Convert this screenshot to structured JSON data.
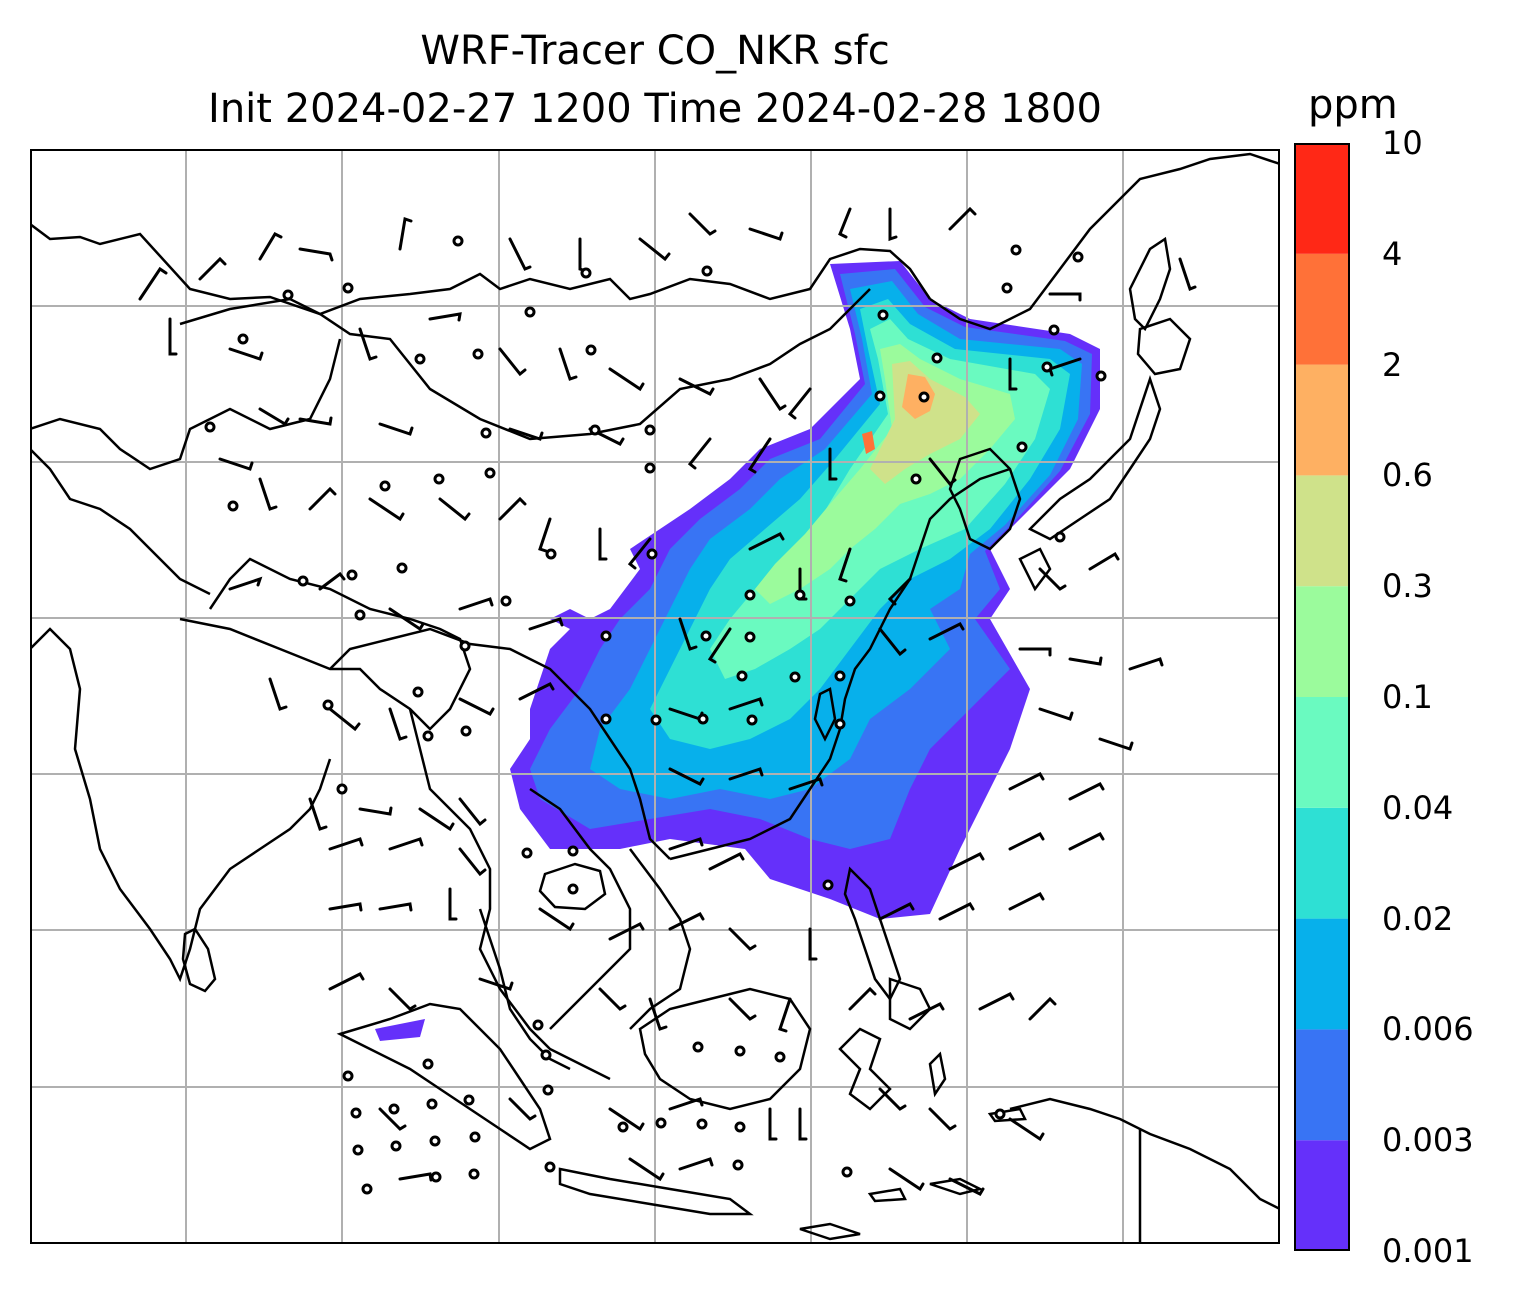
{
  "title_line1": "WRF-Tracer CO_NKR sfc",
  "title_line2": "Init 2024-02-27 1200 Time 2024-02-28 1800",
  "colorbar": {
    "unit": "ppm",
    "levels": [
      "0.001",
      "0.003",
      "0.006",
      "0.02",
      "0.04",
      "0.1",
      "0.3",
      "0.6",
      "2",
      "4",
      "10"
    ],
    "colors": [
      "#6530fa",
      "#3874f4",
      "#07b0eb",
      "#2ee0d4",
      "#6afac0",
      "#9bfb9c",
      "#cfe28a",
      "#feb062",
      "#ff7138",
      "#ff2816"
    ]
  },
  "map": {
    "gridline_color": "#b0b0b0",
    "coastline_color": "#000000",
    "features": [
      "coastlines",
      "country-borders",
      "gridlines",
      "wind-barbs",
      "calm-circles",
      "co-tracer-concentration"
    ]
  }
}
